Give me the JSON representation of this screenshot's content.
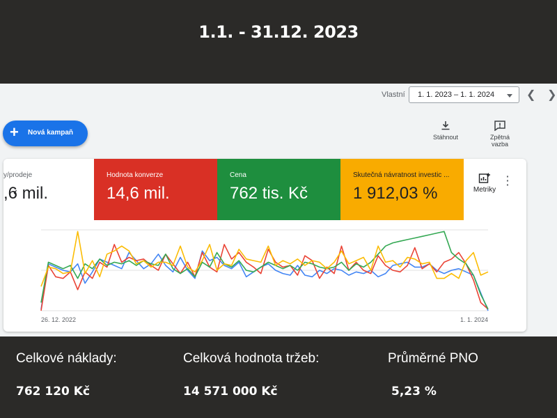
{
  "heading": "1.1. - 31.12. 2023",
  "toolbar": {
    "date_label": "Vlastní",
    "date_range": "1. 1. 2023 – 1. 1. 2024",
    "prev_icon": "chevron-left-icon",
    "next_icon": "chevron-right-icon"
  },
  "fab": {
    "label": "Nová kampaň",
    "icon": "plus-icon"
  },
  "tools": {
    "download_label": "Stáhnout",
    "feedback_label_line1": "Zpětná",
    "feedback_label_line2": "vazba"
  },
  "metrics": [
    {
      "label": "y/prodeje",
      "value": ",6 mil.",
      "color": "#ffffff"
    },
    {
      "label": "Hodnota konverze",
      "value": "14,6 mil.",
      "color": "#d93025"
    },
    {
      "label": "Cena",
      "value": "762 tis. Kč",
      "color": "#1e8e3e"
    },
    {
      "label": "Skutečná návratnost investic ...",
      "value": "1 912,03 %",
      "color": "#f9ab00"
    }
  ],
  "metriky_label": "Metriky",
  "chart_data": {
    "type": "line",
    "x_start_label": "26. 12. 2022",
    "x_end_label": "1. 1. 2024",
    "ylim": [
      0,
      100
    ],
    "grid": true,
    "series": [
      {
        "color": "#4285f4",
        "values": [
          2,
          58,
          54,
          50,
          48,
          58,
          34,
          48,
          64,
          60,
          56,
          52,
          72,
          62,
          52,
          58,
          70,
          56,
          48,
          66,
          50,
          40,
          74,
          62,
          66,
          56,
          52,
          60,
          42,
          48,
          54,
          58,
          50,
          46,
          44,
          56,
          44,
          42,
          50,
          46,
          52,
          50,
          44,
          48,
          46,
          50,
          42,
          46,
          56,
          58,
          60,
          54,
          54,
          58,
          50,
          46,
          50,
          52,
          48,
          44,
          22,
          0
        ]
      },
      {
        "color": "#ea4335",
        "values": [
          0,
          56,
          42,
          40,
          48,
          26,
          48,
          40,
          60,
          54,
          82,
          60,
          66,
          62,
          64,
          56,
          50,
          70,
          58,
          46,
          60,
          42,
          72,
          54,
          48,
          82,
          64,
          72,
          60,
          54,
          46,
          76,
          60,
          54,
          56,
          44,
          68,
          62,
          40,
          54,
          46,
          80,
          50,
          60,
          50,
          46,
          68,
          56,
          50,
          48,
          56,
          78,
          52,
          58,
          48,
          60,
          64,
          72,
          58,
          38,
          10,
          2
        ]
      },
      {
        "color": "#34a853",
        "values": [
          10,
          60,
          56,
          52,
          56,
          40,
          58,
          52,
          64,
          56,
          60,
          58,
          62,
          56,
          62,
          58,
          56,
          70,
          52,
          46,
          52,
          42,
          60,
          54,
          72,
          58,
          54,
          62,
          50,
          48,
          54,
          60,
          56,
          52,
          56,
          50,
          60,
          58,
          54,
          52,
          54,
          60,
          50,
          58,
          54,
          60,
          70,
          80,
          84,
          86,
          88,
          90,
          92,
          94,
          96,
          98,
          72,
          64,
          58,
          44,
          20,
          2
        ]
      },
      {
        "color": "#fbbc04",
        "values": [
          30,
          54,
          52,
          46,
          48,
          98,
          46,
          62,
          42,
          70,
          74,
          80,
          74,
          58,
          62,
          54,
          60,
          60,
          56,
          80,
          54,
          48,
          62,
          82,
          50,
          58,
          56,
          76,
          64,
          62,
          60,
          80,
          56,
          62,
          58,
          64,
          56,
          62,
          60,
          52,
          60,
          74,
          58,
          62,
          66,
          50,
          80,
          60,
          62,
          54,
          66,
          64,
          58,
          60,
          40,
          40,
          46,
          40,
          62,
          72,
          44,
          48
        ]
      }
    ]
  },
  "stats": [
    {
      "label": "Celkové náklady:",
      "value": "762 120 Kč"
    },
    {
      "label": "Celková hodnota tržeb:",
      "value": "14 571 000 Kč"
    },
    {
      "label": "Průměrné PNO",
      "value": "5,23 %"
    }
  ]
}
